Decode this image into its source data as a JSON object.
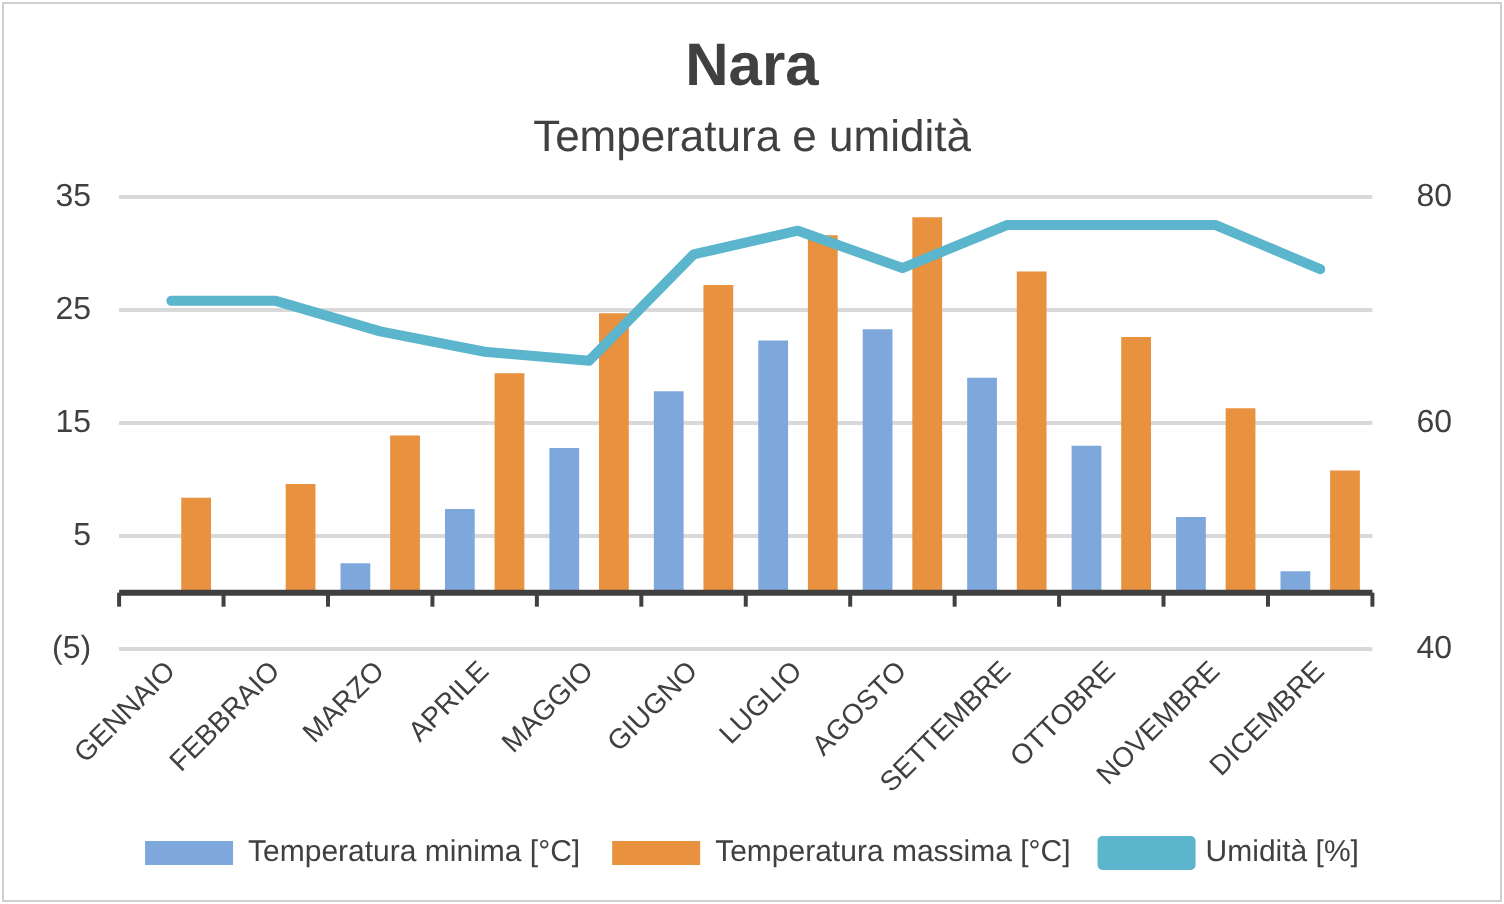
{
  "chart_data": {
    "type": "bar",
    "title": "Nara",
    "subtitle": "Temperatura e umidità",
    "categories": [
      "GENNAIO",
      "FEBBRAIO",
      "MARZO",
      "APRILE",
      "MAGGIO",
      "GIUGNO",
      "LUGLIO",
      "AGOSTO",
      "SETTEMBRE",
      "OTTOBRE",
      "NOVEMBRE",
      "DICEMBRE"
    ],
    "series": [
      {
        "name": "Temperatura minima [°C]",
        "color": "#7ea8dc",
        "values": [
          0,
          null,
          2.6,
          7.4,
          12.8,
          17.8,
          22.3,
          23.3,
          19.0,
          13.0,
          6.7,
          1.9
        ]
      },
      {
        "name": "Temperatura massima [°C]",
        "color": "#e8913f",
        "values": [
          8.4,
          9.6,
          13.9,
          19.4,
          24.7,
          27.2,
          31.6,
          33.2,
          28.4,
          22.6,
          16.3,
          10.8
        ]
      },
      {
        "name": "Umidità [%]",
        "type": "line",
        "axis": "y2",
        "color": "#5bb5cc",
        "marker": "none",
        "values": [
          70.8,
          70.8,
          68.1,
          66.3,
          65.5,
          74.9,
          77.0,
          73.7,
          77.5,
          77.5,
          77.5,
          73.6
        ]
      }
    ],
    "ylim": [
      -5,
      35
    ],
    "yticks": [
      {
        "value": -5,
        "label": "(5)"
      },
      5,
      15,
      25,
      35
    ],
    "y2lim": [
      40,
      80
    ],
    "y2ticks": [
      40,
      60,
      80
    ],
    "grid": "y",
    "legend": "bottom"
  }
}
